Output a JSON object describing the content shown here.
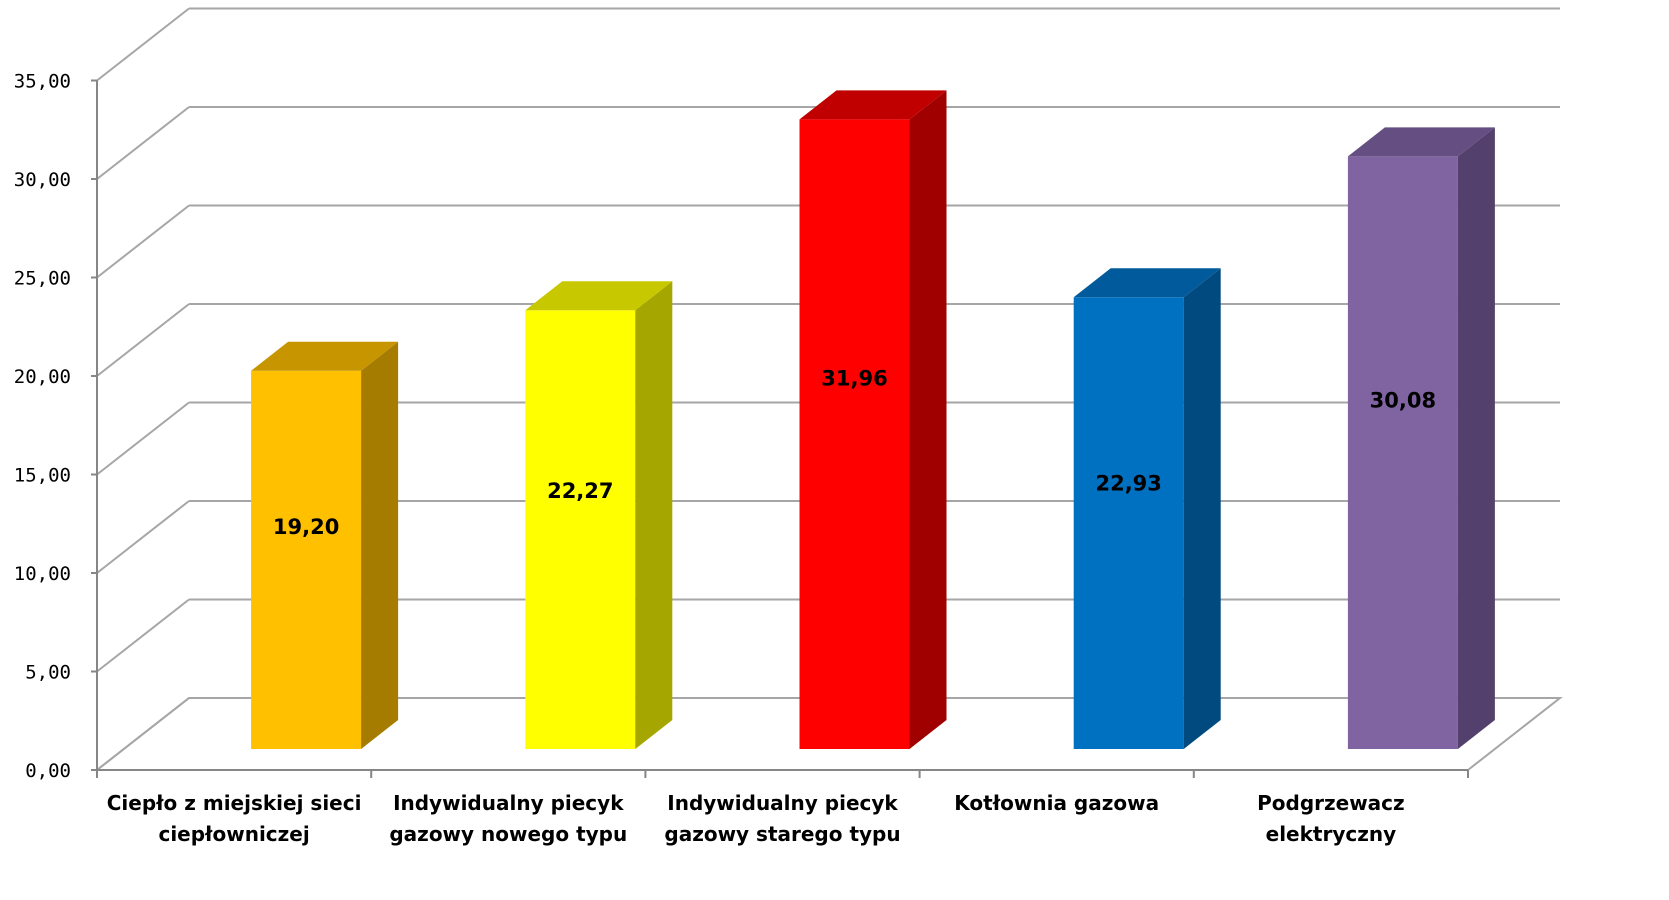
{
  "chart_data": {
    "type": "bar",
    "categories": [
      [
        "Ciepło z miejskiej sieci",
        "ciepłowniczej"
      ],
      [
        "Indywidualny piecyk",
        "gazowy nowego typu"
      ],
      [
        "Indywidualny piecyk",
        "gazowy starego typu"
      ],
      [
        "Kotłownia gazowa"
      ],
      [
        "Podgrzewacz",
        "elektryczny"
      ]
    ],
    "values": [
      19.2,
      22.27,
      31.96,
      22.93,
      30.08
    ],
    "value_labels": [
      "19,20",
      "22,27",
      "31,96",
      "22,93",
      "30,08"
    ],
    "ylim": [
      0,
      35
    ],
    "yticks": [
      "0,00",
      "5,00",
      "10,00",
      "15,00",
      "20,00",
      "25,00",
      "30,00",
      "35,00"
    ],
    "colors": [
      {
        "front": "#FFC000",
        "side": "#A67C00",
        "top": "#C69500"
      },
      {
        "front": "#FFFF00",
        "side": "#A6A600",
        "top": "#C8C800"
      },
      {
        "front": "#FF0000",
        "side": "#A00000",
        "top": "#C00000"
      },
      {
        "front": "#0070C0",
        "side": "#004A80",
        "top": "#005A9C"
      },
      {
        "front": "#8064A2",
        "side": "#54406C",
        "top": "#654E82"
      }
    ],
    "grid": true,
    "legend": "none",
    "title": "",
    "xlabel": "",
    "ylabel": ""
  }
}
